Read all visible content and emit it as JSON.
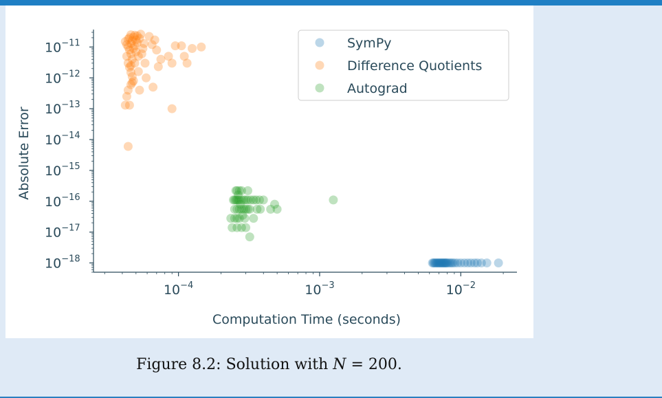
{
  "caption": {
    "prefix": "Figure 8.2: Solution with ",
    "variable": "N",
    "suffix": " = 200."
  },
  "chart_data": {
    "type": "scatter",
    "title": "",
    "xlabel": "Computation Time (seconds)",
    "ylabel": "Absolute Error",
    "xscale": "log",
    "yscale": "log",
    "xlim": [
      2.5e-05,
      0.025
    ],
    "ylim": [
      5e-19,
      3e-11
    ],
    "xticks": [
      {
        "value": 0.0001,
        "base": "10",
        "exp": "−4"
      },
      {
        "value": 0.001,
        "base": "10",
        "exp": "−3"
      },
      {
        "value": 0.01,
        "base": "10",
        "exp": "−2"
      }
    ],
    "yticks": [
      {
        "value": 1e-11,
        "base": "10",
        "exp": "−11"
      },
      {
        "value": 1e-12,
        "base": "10",
        "exp": "−12"
      },
      {
        "value": 1e-13,
        "base": "10",
        "exp": "−13"
      },
      {
        "value": 1e-14,
        "base": "10",
        "exp": "−14"
      },
      {
        "value": 1e-15,
        "base": "10",
        "exp": "−15"
      },
      {
        "value": 1e-16,
        "base": "10",
        "exp": "−16"
      },
      {
        "value": 1e-17,
        "base": "10",
        "exp": "−17"
      },
      {
        "value": 1e-18,
        "base": "10",
        "exp": "−18"
      }
    ],
    "grid": false,
    "legend_position": "top-right",
    "series": [
      {
        "name": "SymPy",
        "color": "#1f77b4",
        "points": [
          [
            0.0063,
            1e-18
          ],
          [
            0.0064,
            1e-18
          ],
          [
            0.0065,
            1e-18
          ],
          [
            0.0066,
            1e-18
          ],
          [
            0.0067,
            1e-18
          ],
          [
            0.0068,
            1e-18
          ],
          [
            0.0069,
            1e-18
          ],
          [
            0.007,
            1e-18
          ],
          [
            0.0071,
            1e-18
          ],
          [
            0.0072,
            1e-18
          ],
          [
            0.0073,
            1e-18
          ],
          [
            0.0074,
            1e-18
          ],
          [
            0.0075,
            1e-18
          ],
          [
            0.0076,
            1e-18
          ],
          [
            0.0077,
            1e-18
          ],
          [
            0.0078,
            1e-18
          ],
          [
            0.0079,
            1e-18
          ],
          [
            0.008,
            1e-18
          ],
          [
            0.0082,
            1e-18
          ],
          [
            0.0084,
            1e-18
          ],
          [
            0.0086,
            1e-18
          ],
          [
            0.0088,
            1e-18
          ],
          [
            0.0091,
            1e-18
          ],
          [
            0.0095,
            1e-18
          ],
          [
            0.01,
            1e-18
          ],
          [
            0.0106,
            1e-18
          ],
          [
            0.0112,
            1e-18
          ],
          [
            0.0118,
            1e-18
          ],
          [
            0.0125,
            1e-18
          ],
          [
            0.0131,
            1e-18
          ],
          [
            0.014,
            1e-18
          ],
          [
            0.0153,
            1e-18
          ],
          [
            0.0185,
            1e-18
          ]
        ]
      },
      {
        "name": "Difference Quotients",
        "color": "#ff7f0e",
        "points": [
          [
            4.2e-05,
            1.5e-11
          ],
          [
            4.3e-05,
            1.2e-11
          ],
          [
            4.4e-05,
            1.8e-11
          ],
          [
            4.4e-05,
            1e-11
          ],
          [
            4.5e-05,
            2e-11
          ],
          [
            4.5e-05,
            8e-12
          ],
          [
            4.6e-05,
            1.3e-11
          ],
          [
            4.6e-05,
            6e-12
          ],
          [
            4.7e-05,
            1.6e-11
          ],
          [
            4.7e-05,
            4e-12
          ],
          [
            4.8e-05,
            2.1e-11
          ],
          [
            4.8e-05,
            9e-12
          ],
          [
            4.9e-05,
            1.1e-11
          ],
          [
            4.9e-05,
            3e-12
          ],
          [
            5e-05,
            1.7e-11
          ],
          [
            5e-05,
            7e-12
          ],
          [
            5.1e-05,
            2.3e-11
          ],
          [
            5.1e-05,
            1.4e-11
          ],
          [
            5.2e-05,
            5e-12
          ],
          [
            5.3e-05,
            1.9e-11
          ],
          [
            4.3e-05,
            5e-12
          ],
          [
            4.4e-05,
            3e-12
          ],
          [
            4.5e-05,
            2.2e-12
          ],
          [
            4.6e-05,
            1.5e-12
          ],
          [
            4.7e-05,
            1.1e-12
          ],
          [
            4.8e-05,
            8e-13
          ],
          [
            4.6e-05,
            6e-13
          ],
          [
            4.4e-05,
            4e-13
          ],
          [
            4.3e-05,
            2.5e-13
          ],
          [
            4.2e-05,
            1.3e-13
          ],
          [
            4.5e-05,
            1.3e-13
          ],
          [
            5.3e-05,
            4e-13
          ],
          [
            5.6e-05,
            9e-12
          ],
          [
            5.7e-05,
            1.3e-11
          ],
          [
            5.8e-05,
            3e-12
          ],
          [
            5.5e-05,
            6e-12
          ],
          [
            5.9e-05,
            1e-12
          ],
          [
            6.2e-05,
            2.2e-11
          ],
          [
            6.5e-05,
            1.2e-11
          ],
          [
            6.6e-05,
            5e-13
          ],
          [
            6.8e-05,
            1.7e-11
          ],
          [
            7e-05,
            8e-12
          ],
          [
            7.2e-05,
            2.3e-12
          ],
          [
            7.5e-05,
            4e-12
          ],
          [
            8.5e-05,
            5e-12
          ],
          [
            9e-05,
            3e-12
          ],
          [
            9.5e-05,
            1.1e-11
          ],
          [
            0.000105,
            1.1e-11
          ],
          [
            0.00011,
            5e-12
          ],
          [
            0.000115,
            3e-12
          ],
          [
            0.000125,
            9e-12
          ],
          [
            0.000145,
            1e-11
          ],
          [
            9e-05,
            1e-13
          ],
          [
            4.4e-05,
            6e-15
          ],
          [
            4.6e-05,
            2.5e-12
          ],
          [
            5.2e-05,
            1.6e-12
          ],
          [
            5.4e-05,
            2.6e-11
          ],
          [
            4.9e-05,
            2.4e-11
          ],
          [
            4.6e-05,
            2.5e-11
          ],
          [
            4.7e-05,
            7e-13
          ]
        ]
      },
      {
        "name": "Autograd",
        "color": "#2ca02c",
        "points": [
          [
            0.000245,
            1.1e-16
          ],
          [
            0.00025,
            1.1e-16
          ],
          [
            0.000255,
            1.1e-16
          ],
          [
            0.00026,
            1.1e-16
          ],
          [
            0.000265,
            1.1e-16
          ],
          [
            0.00027,
            1.1e-16
          ],
          [
            0.00028,
            1.1e-16
          ],
          [
            0.00029,
            1.1e-16
          ],
          [
            0.0003,
            1.1e-16
          ],
          [
            0.00031,
            1.1e-16
          ],
          [
            0.000325,
            1.1e-16
          ],
          [
            0.00034,
            1.1e-16
          ],
          [
            0.000355,
            1.1e-16
          ],
          [
            0.000375,
            1.1e-16
          ],
          [
            0.0004,
            1.1e-16
          ],
          [
            0.00025,
            5.5e-17
          ],
          [
            0.00026,
            5.5e-17
          ],
          [
            0.00027,
            5.5e-17
          ],
          [
            0.00028,
            5.5e-17
          ],
          [
            0.00029,
            5.5e-17
          ],
          [
            0.0003,
            5.5e-17
          ],
          [
            0.00031,
            5.5e-17
          ],
          [
            0.00032,
            5.5e-17
          ],
          [
            0.00036,
            5.5e-17
          ],
          [
            0.00038,
            5.5e-17
          ],
          [
            0.00045,
            5.5e-17
          ],
          [
            0.0005,
            5.5e-17
          ],
          [
            0.00048,
            8e-17
          ],
          [
            0.000255,
            2.2e-16
          ],
          [
            0.00026,
            2.2e-16
          ],
          [
            0.00027,
            2.2e-16
          ],
          [
            0.00028,
            2.2e-16
          ],
          [
            0.00031,
            2.2e-16
          ],
          [
            0.00025,
            2.8e-17
          ],
          [
            0.00026,
            2.8e-17
          ],
          [
            0.00027,
            2.8e-17
          ],
          [
            0.000295,
            2.8e-17
          ],
          [
            0.00034,
            2.8e-17
          ],
          [
            0.000235,
            2.8e-17
          ],
          [
            0.00024,
            1.4e-17
          ],
          [
            0.00026,
            1.4e-17
          ],
          [
            0.00028,
            1.4e-17
          ],
          [
            0.0003,
            1.4e-17
          ],
          [
            0.00032,
            7e-18
          ],
          [
            0.000265,
            1.6e-16
          ],
          [
            0.000275,
            8e-17
          ],
          [
            0.000285,
            3.5e-17
          ],
          [
            0.00125,
            1.1e-16
          ]
        ]
      }
    ]
  }
}
